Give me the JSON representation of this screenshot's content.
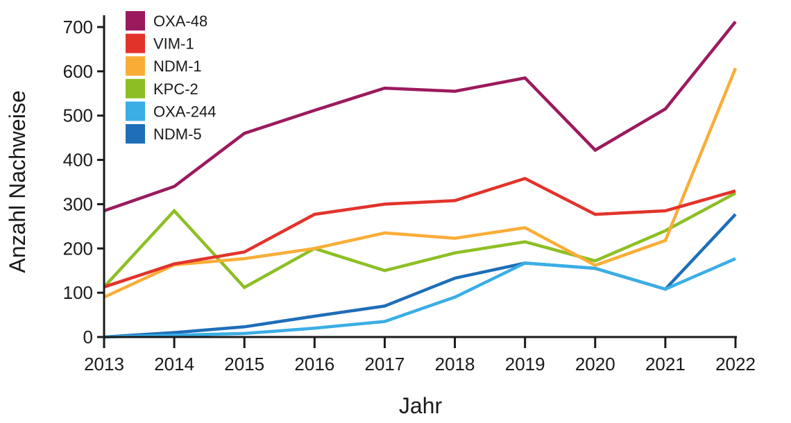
{
  "chart_data": {
    "type": "line",
    "title": "",
    "xlabel": "Jahr",
    "ylabel": "Anzahl Nachweise",
    "x": [
      2013,
      2014,
      2015,
      2016,
      2017,
      2018,
      2019,
      2020,
      2021,
      2022
    ],
    "x_tick_labels": [
      "2013",
      "2014",
      "2015",
      "2016",
      "2017",
      "2018",
      "2019",
      "2020",
      "2021",
      "2022"
    ],
    "ylim": [
      0,
      730
    ],
    "y_ticks": [
      0,
      100,
      200,
      300,
      400,
      500,
      600,
      700
    ],
    "y_tick_labels": [
      "0",
      "100",
      "200",
      "300",
      "400",
      "500",
      "600",
      "700"
    ],
    "grid": false,
    "legend_position": "top-left",
    "series": [
      {
        "name": "OXA-48",
        "color": "#9b1a5e",
        "values": [
          285,
          340,
          460,
          512,
          562,
          555,
          585,
          422,
          515,
          712
        ]
      },
      {
        "name": "VIM-1",
        "color": "#e2332b",
        "values": [
          113,
          165,
          192,
          277,
          300,
          308,
          358,
          277,
          285,
          330
        ]
      },
      {
        "name": "NDM-1",
        "color": "#f9ad37",
        "values": [
          90,
          163,
          177,
          200,
          235,
          223,
          247,
          162,
          218,
          607
        ]
      },
      {
        "name": "KPC-2",
        "color": "#8dbf24",
        "values": [
          113,
          285,
          112,
          200,
          150,
          190,
          215,
          172,
          240,
          325
        ]
      },
      {
        "name": "OXA-244",
        "color": "#3aaee5",
        "values": [
          0,
          4,
          8,
          20,
          35,
          90,
          167,
          155,
          108,
          177
        ]
      },
      {
        "name": "NDM-5",
        "color": "#1e6eb8",
        "values": [
          0,
          10,
          23,
          47,
          70,
          133,
          167,
          155,
          108,
          277
        ]
      }
    ]
  }
}
